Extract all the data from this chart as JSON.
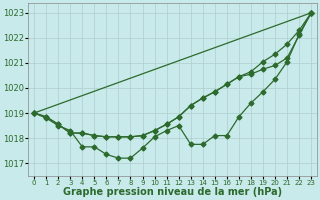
{
  "x": [
    0,
    1,
    2,
    3,
    4,
    5,
    6,
    7,
    8,
    9,
    10,
    11,
    12,
    13,
    14,
    15,
    16,
    17,
    18,
    19,
    20,
    21,
    22,
    23
  ],
  "series": [
    [
      1019.0,
      1018.8,
      1018.5,
      1018.3,
      1017.65,
      1017.65,
      1017.35,
      1017.2,
      1017.2,
      1017.6,
      1018.05,
      1018.3,
      1018.5,
      1017.75,
      1017.75,
      1018.1,
      1018.1,
      1018.85,
      1019.4,
      1019.85,
      1020.35,
      1021.05,
      1022.15,
      1023.0
    ],
    [
      1019.0,
      1018.85,
      1018.55,
      1018.2,
      1018.2,
      1018.1,
      1018.05,
      1018.05,
      1018.05,
      1018.1,
      1018.3,
      1018.55,
      1018.85,
      1019.3,
      1019.6,
      1019.85,
      1020.15,
      1020.45,
      1020.55,
      1020.75,
      1020.9,
      1021.2,
      1022.1,
      1023.0
    ],
    [
      1019.0,
      1018.85,
      1018.55,
      1018.2,
      1018.2,
      1018.1,
      1018.05,
      1018.05,
      1018.05,
      1018.1,
      1018.3,
      1018.55,
      1018.85,
      1019.3,
      1019.6,
      1019.85,
      1020.15,
      1020.45,
      1020.65,
      1021.05,
      1021.35,
      1021.75,
      1022.3,
      1023.0
    ],
    [
      1019.0,
      null,
      null,
      1018.2,
      null,
      null,
      null,
      null,
      null,
      null,
      null,
      null,
      null,
      null,
      null,
      null,
      null,
      null,
      null,
      null,
      null,
      null,
      null,
      1023.0
    ]
  ],
  "bg_color": "#c8eaea",
  "grid_color": "#b0cccc",
  "line_color": "#2d6a2d",
  "marker": "D",
  "marker_size": 2.5,
  "line_width": 0.9,
  "xlabel": "Graphe pression niveau de la mer (hPa)",
  "xlabel_fontsize": 7,
  "xlabel_color": "#2d6a2d",
  "ylabel_ticks": [
    1017,
    1018,
    1019,
    1020,
    1021,
    1022,
    1023
  ],
  "xlim": [
    -0.5,
    23.5
  ],
  "ylim": [
    1016.5,
    1023.4
  ],
  "xtick_labels": [
    "0",
    "1",
    "2",
    "3",
    "4",
    "5",
    "6",
    "7",
    "8",
    "9",
    "10",
    "11",
    "12",
    "13",
    "14",
    "15",
    "16",
    "17",
    "18",
    "19",
    "20",
    "21",
    "22",
    "23"
  ],
  "xtick_fontsize": 5.0,
  "ytick_fontsize": 6.0
}
